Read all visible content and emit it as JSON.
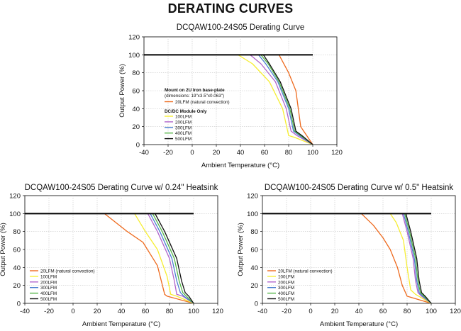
{
  "page": {
    "title": "DERATING CURVES"
  },
  "colors": {
    "20LFM": "#ee6a1e",
    "100LFM": "#f6ee32",
    "200LFM": "#b065cc",
    "300LFM": "#4a7fd0",
    "400LFM": "#56b64a",
    "500LFM": "#111111",
    "baseline": "#000000",
    "grid": "#c8c8c8"
  },
  "chart_data": [
    {
      "type": "line",
      "title": "DCQAW100-24S05 Derating Curve",
      "xlabel": "Ambient Temperature (°C)",
      "ylabel": "Output Power (%)",
      "xlim": [
        -40,
        120
      ],
      "ylim": [
        0,
        120
      ],
      "xticks": [
        -40,
        -20,
        0,
        20,
        40,
        60,
        80,
        100,
        120
      ],
      "yticks": [
        0,
        20,
        40,
        60,
        80,
        100,
        120
      ],
      "grid": true,
      "legend_position": "lower-left",
      "legend_headers": [
        "Mount on 2U Iron base-plate",
        "(dimensions: 19\"x3.5\"x0.063\")",
        "DC/DC Module Only"
      ],
      "baseline": {
        "x": [
          -40,
          100
        ],
        "y": [
          100,
          100
        ]
      },
      "series": [
        {
          "name": "20LFM (natural convection)",
          "color_key": "20LFM",
          "x": [
            60,
            72,
            80,
            86,
            90,
            100
          ],
          "y": [
            100,
            100,
            80,
            60,
            20,
            0
          ]
        },
        {
          "name": "100LFM",
          "color_key": "100LFM",
          "x": [
            38,
            50,
            64,
            75,
            80,
            85,
            100
          ],
          "y": [
            100,
            90,
            70,
            40,
            10,
            8,
            0
          ]
        },
        {
          "name": "200LFM",
          "color_key": "200LFM",
          "x": [
            48,
            57,
            69,
            78,
            82,
            87,
            100
          ],
          "y": [
            100,
            90,
            70,
            40,
            15,
            10,
            0
          ]
        },
        {
          "name": "300LFM",
          "color_key": "300LFM",
          "x": [
            55,
            61,
            71,
            80,
            84,
            89,
            100
          ],
          "y": [
            100,
            90,
            70,
            40,
            15,
            10,
            0
          ]
        },
        {
          "name": "400LFM",
          "color_key": "400LFM",
          "x": [
            57,
            63,
            72,
            81,
            85,
            90,
            100
          ],
          "y": [
            100,
            90,
            70,
            40,
            15,
            10,
            0
          ]
        },
        {
          "name": "500LFM",
          "color_key": "500LFM",
          "x": [
            59,
            64,
            73,
            82,
            86,
            91,
            100
          ],
          "y": [
            100,
            90,
            70,
            40,
            15,
            10,
            0
          ]
        }
      ]
    },
    {
      "type": "line",
      "title": "DCQAW100-24S05 Derating Curve w/ 0.24\" Heatsink",
      "xlabel": "Ambient Temperature (°C)",
      "ylabel": "Output Power (%)",
      "xlim": [
        -40,
        120
      ],
      "ylim": [
        0,
        120
      ],
      "xticks": [
        -40,
        -20,
        0,
        20,
        40,
        60,
        80,
        100,
        120
      ],
      "yticks": [
        0,
        20,
        40,
        60,
        80,
        100,
        120
      ],
      "grid": true,
      "legend_position": "lower-left",
      "baseline": {
        "x": [
          -40,
          100
        ],
        "y": [
          100,
          100
        ]
      },
      "series": [
        {
          "name": "20LFM (natural convection)",
          "color_key": "20LFM",
          "x": [
            26,
            45,
            58,
            70,
            76,
            78,
            100
          ],
          "y": [
            100,
            80,
            68,
            42,
            10,
            8,
            0
          ]
        },
        {
          "name": "100LFM",
          "color_key": "100LFM",
          "x": [
            51,
            60,
            70,
            78,
            81,
            86,
            100
          ],
          "y": [
            100,
            80,
            60,
            30,
            10,
            8,
            0
          ]
        },
        {
          "name": "200LFM",
          "color_key": "200LFM",
          "x": [
            62,
            70,
            80,
            84,
            86,
            91,
            100
          ],
          "y": [
            100,
            80,
            50,
            25,
            10,
            8,
            0
          ]
        },
        {
          "name": "300LFM",
          "color_key": "300LFM",
          "x": [
            64,
            72,
            82,
            86,
            89,
            92,
            100
          ],
          "y": [
            100,
            80,
            50,
            25,
            12,
            8,
            0
          ]
        },
        {
          "name": "400LFM",
          "color_key": "400LFM",
          "x": [
            66,
            74,
            84,
            88,
            91,
            94,
            100
          ],
          "y": [
            100,
            80,
            50,
            25,
            12,
            8,
            0
          ]
        },
        {
          "name": "500LFM",
          "color_key": "500LFM",
          "x": [
            68,
            76,
            86,
            90,
            93,
            96,
            100
          ],
          "y": [
            100,
            80,
            50,
            25,
            12,
            8,
            0
          ]
        }
      ]
    },
    {
      "type": "line",
      "title": "DCQAW100-24S05 Derating Curve w/ 0.5\" Heatsink",
      "xlabel": "Ambient Temperature (°C)",
      "ylabel": "Output Power (%)",
      "xlim": [
        -40,
        120
      ],
      "ylim": [
        0,
        120
      ],
      "xticks": [
        -40,
        -20,
        0,
        20,
        40,
        60,
        80,
        100,
        120
      ],
      "yticks": [
        0,
        20,
        40,
        60,
        80,
        100,
        120
      ],
      "grid": true,
      "legend_position": "lower-left",
      "baseline": {
        "x": [
          -40,
          100
        ],
        "y": [
          100,
          100
        ]
      },
      "series": [
        {
          "name": "20LFM (natural convection)",
          "color_key": "20LFM",
          "x": [
            42,
            52,
            60,
            66,
            72,
            76,
            80,
            100
          ],
          "y": [
            100,
            87,
            73,
            60,
            40,
            20,
            8,
            0
          ]
        },
        {
          "name": "100LFM",
          "color_key": "100LFM",
          "x": [
            66,
            71,
            77,
            80,
            83,
            87,
            100
          ],
          "y": [
            100,
            90,
            70,
            40,
            15,
            10,
            0
          ]
        },
        {
          "name": "200LFM",
          "color_key": "200LFM",
          "x": [
            76,
            80,
            85,
            87,
            89,
            92,
            100
          ],
          "y": [
            100,
            80,
            50,
            25,
            12,
            8,
            0
          ]
        },
        {
          "name": "300LFM",
          "color_key": "300LFM",
          "x": [
            77,
            81,
            86,
            88,
            90,
            93,
            100
          ],
          "y": [
            100,
            80,
            50,
            25,
            12,
            8,
            0
          ]
        },
        {
          "name": "400LFM",
          "color_key": "400LFM",
          "x": [
            78,
            82,
            87,
            89,
            91,
            94,
            100
          ],
          "y": [
            100,
            80,
            50,
            25,
            12,
            8,
            0
          ]
        },
        {
          "name": "500LFM",
          "color_key": "500LFM",
          "x": [
            79,
            83,
            88,
            90,
            92,
            95,
            100
          ],
          "y": [
            100,
            80,
            50,
            25,
            12,
            8,
            0
          ]
        }
      ]
    }
  ]
}
